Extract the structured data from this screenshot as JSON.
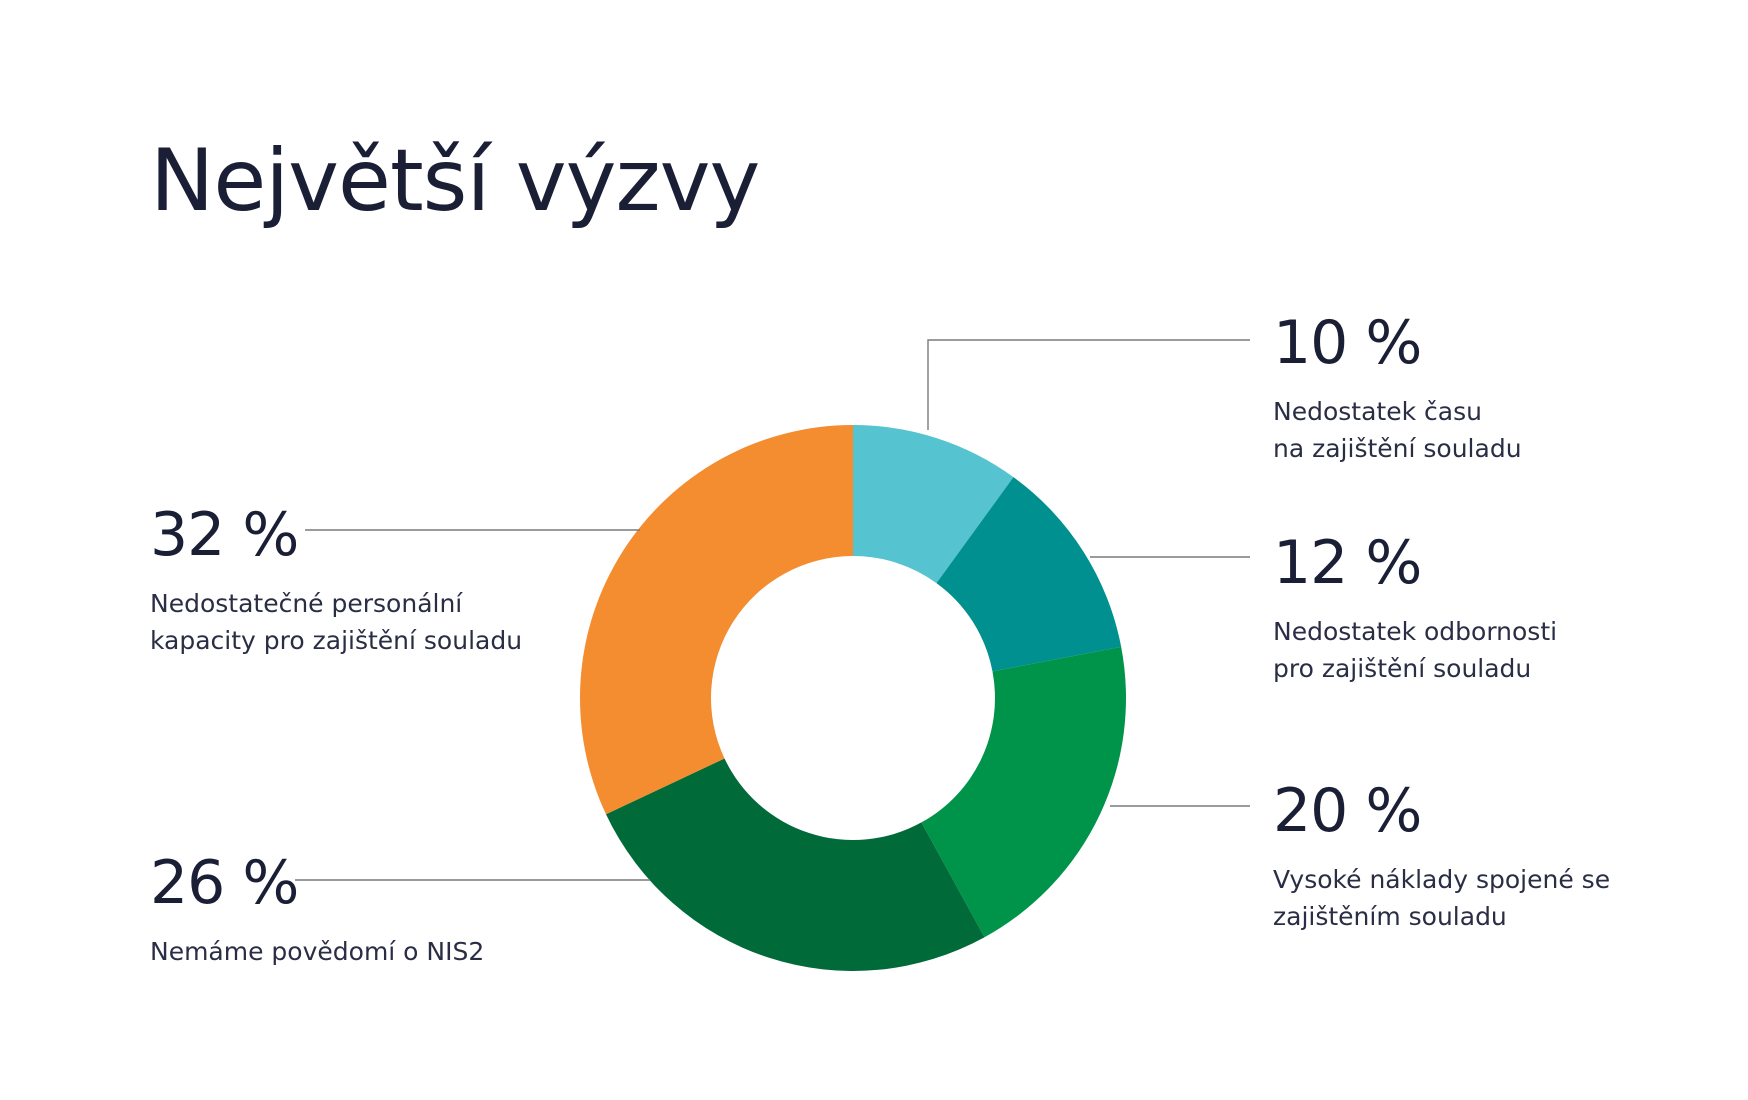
{
  "page": {
    "title": "Největší výzvy"
  },
  "chart_data": {
    "type": "pie",
    "variant": "donut",
    "title": "Největší výzvy",
    "unit": "%",
    "slices": [
      {
        "value": 10,
        "display": "10 %",
        "label": "Nedostatek času\nna zajištění souladu",
        "color": "#56c3d0"
      },
      {
        "value": 12,
        "display": "12 %",
        "label": "Nedostatek odbornosti\npro zajištění souladu",
        "color": "#00908f"
      },
      {
        "value": 20,
        "display": "20 %",
        "label": "Vysoké náklady spojené se\nzajištěním souladu",
        "color": "#00944b"
      },
      {
        "value": 26,
        "display": "26 %",
        "label": "Nemáme povědomí o NIS2",
        "color": "#016a39"
      },
      {
        "value": 32,
        "display": "32 %",
        "label": "Nedostatečné personální\nkapacity pro zajištění souladu",
        "color": "#f48c30"
      }
    ]
  }
}
